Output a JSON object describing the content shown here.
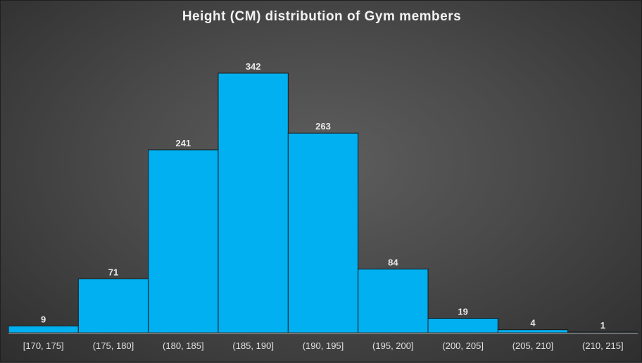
{
  "chart_data": {
    "type": "bar",
    "title": "Height (CM) distribution of Gym members",
    "categories": [
      "[170, 175]",
      "(175, 180]",
      "(180, 185]",
      "(185, 190]",
      "(190, 195]",
      "(195, 200]",
      "(200, 205]",
      "(205, 210]",
      "(210, 215]"
    ],
    "values": [
      9,
      71,
      241,
      342,
      263,
      84,
      19,
      4,
      1
    ],
    "xlabel": "",
    "ylabel": "",
    "ylim": [
      0,
      380
    ],
    "grid": false,
    "legend": "none",
    "bar_color": "#00b0f0",
    "data_labels": true
  }
}
